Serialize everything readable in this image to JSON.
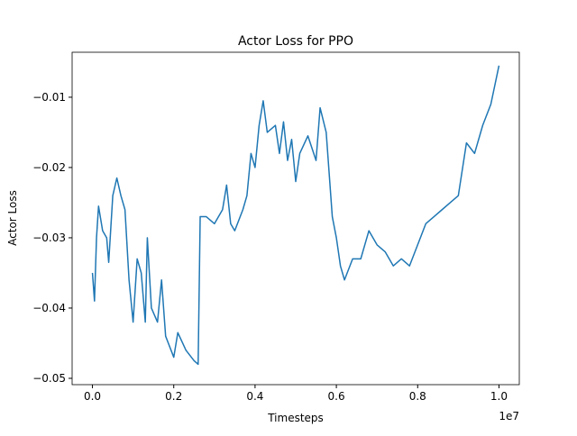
{
  "chart_data": {
    "type": "line",
    "title": "Actor Loss for PPO",
    "xlabel": "Timesteps",
    "ylabel": "Actor Loss",
    "x_offset_label": "1e7",
    "x": [
      0,
      50000,
      100000,
      150000,
      250000,
      350000,
      400000,
      500000,
      600000,
      700000,
      800000,
      900000,
      1000000,
      1100000,
      1200000,
      1300000,
      1350000,
      1450000,
      1600000,
      1700000,
      1800000,
      2000000,
      2100000,
      2300000,
      2500000,
      2600000,
      2650000,
      2800000,
      3000000,
      3200000,
      3300000,
      3400000,
      3500000,
      3700000,
      3800000,
      3900000,
      4000000,
      4100000,
      4200000,
      4300000,
      4500000,
      4600000,
      4700000,
      4800000,
      4900000,
      5000000,
      5100000,
      5300000,
      5500000,
      5600000,
      5750000,
      5900000,
      6000000,
      6100000,
      6200000,
      6400000,
      6600000,
      6800000,
      7000000,
      7200000,
      7400000,
      7600000,
      7800000,
      8000000,
      8200000,
      8400000,
      8600000,
      8800000,
      9000000,
      9200000,
      9400000,
      9600000,
      9800000,
      10000000
    ],
    "series": [
      {
        "name": "Actor Loss",
        "color": "#1f77b4",
        "values": [
          -0.035,
          -0.039,
          -0.03,
          -0.0255,
          -0.029,
          -0.03,
          -0.0335,
          -0.024,
          -0.0215,
          -0.024,
          -0.026,
          -0.036,
          -0.042,
          -0.033,
          -0.035,
          -0.042,
          -0.03,
          -0.04,
          -0.042,
          -0.036,
          -0.044,
          -0.047,
          -0.0435,
          -0.046,
          -0.0475,
          -0.048,
          -0.027,
          -0.027,
          -0.028,
          -0.026,
          -0.0225,
          -0.028,
          -0.029,
          -0.026,
          -0.024,
          -0.018,
          -0.02,
          -0.014,
          -0.0105,
          -0.015,
          -0.014,
          -0.018,
          -0.0135,
          -0.019,
          -0.016,
          -0.022,
          -0.018,
          -0.0155,
          -0.019,
          -0.0115,
          -0.015,
          -0.027,
          -0.03,
          -0.034,
          -0.036,
          -0.033,
          -0.033,
          -0.029,
          -0.031,
          -0.032,
          -0.034,
          -0.033,
          -0.034,
          -0.031,
          -0.028,
          -0.027,
          -0.026,
          -0.025,
          -0.024,
          -0.0165,
          -0.018,
          -0.014,
          -0.011,
          -0.0055
        ]
      }
    ],
    "xlim": [
      -500000,
      10500000
    ],
    "xticks": [
      {
        "value": 0,
        "label": "0.0"
      },
      {
        "value": 2000000,
        "label": "0.2"
      },
      {
        "value": 4000000,
        "label": "0.4"
      },
      {
        "value": 6000000,
        "label": "0.6"
      },
      {
        "value": 8000000,
        "label": "0.8"
      },
      {
        "value": 10000000,
        "label": "1.0"
      }
    ],
    "ylim": [
      -0.0509,
      -0.0036
    ],
    "yticks": [
      {
        "value": -0.05,
        "label": "−0.05"
      },
      {
        "value": -0.04,
        "label": "−0.04"
      },
      {
        "value": -0.03,
        "label": "−0.03"
      },
      {
        "value": -0.02,
        "label": "−0.02"
      },
      {
        "value": -0.01,
        "label": "−0.01"
      }
    ],
    "grid": false
  }
}
